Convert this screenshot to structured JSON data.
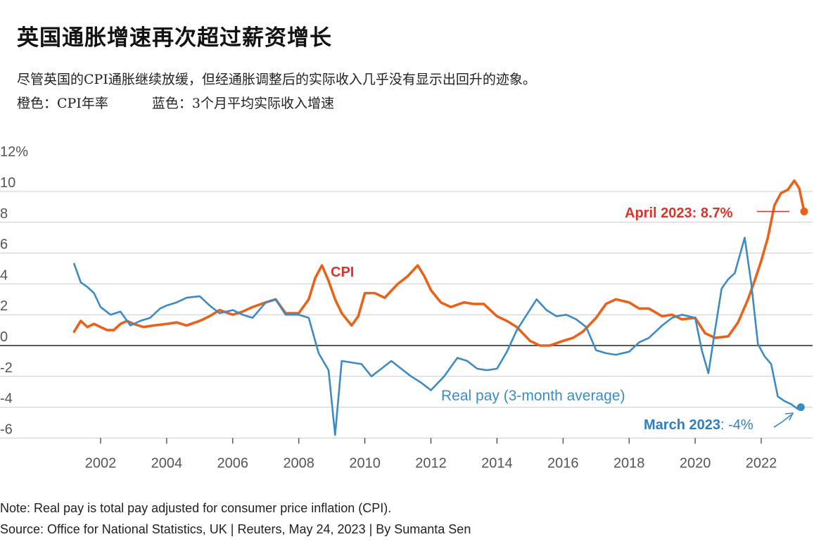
{
  "title": "英国通胀增速再次超过薪资增长",
  "subtitle": "尽管英国的CPI通胀继续放缓，但经通胀调整后的实际收入几乎没有显示出回升的迹象。",
  "legend": {
    "orange": "橙色：CPI年率",
    "blue": "蓝色：3个月平均实际收入增速"
  },
  "note": "Note: Real pay is total pay adjusted for consumer price inflation (CPI).",
  "source": "Source: Office for National Statistics, UK | Reuters, May 24, 2023 | By Sumanta Sen",
  "colors": {
    "cpi": "#e8621a",
    "pay": "#3d8bc4",
    "cpi_label": "#d9342b",
    "pay_label": "#2d7fc0",
    "grid": "#cccccc",
    "zero": "#222222"
  },
  "chart_data": {
    "type": "line",
    "title": "",
    "xlabel": "",
    "ylabel": "",
    "x_range": [
      2000,
      2023.5
    ],
    "ylim": [
      -6,
      12
    ],
    "y_ticks": [
      12,
      10,
      8,
      6,
      4,
      2,
      0,
      -2,
      -4,
      -6
    ],
    "y_tick_labels": [
      "12%",
      "10",
      "8",
      "6",
      "4",
      "2",
      "0",
      "-2",
      "-4",
      "-6"
    ],
    "x_ticks": [
      2002,
      2004,
      2006,
      2008,
      2010,
      2012,
      2014,
      2016,
      2018,
      2020,
      2022
    ],
    "x_tick_labels": [
      "2002",
      "2004",
      "2006",
      "2008",
      "2010",
      "2012",
      "2014",
      "2016",
      "2018",
      "2020",
      "2022"
    ],
    "grid": true,
    "series": [
      {
        "name": "CPI",
        "x": [
          2001.2,
          2001.4,
          2001.6,
          2001.8,
          2002.0,
          2002.2,
          2002.4,
          2002.6,
          2002.8,
          2003.0,
          2003.3,
          2003.6,
          2004.0,
          2004.3,
          2004.6,
          2005.0,
          2005.3,
          2005.6,
          2006.0,
          2006.3,
          2006.6,
          2007.0,
          2007.3,
          2007.6,
          2008.0,
          2008.3,
          2008.5,
          2008.7,
          2008.9,
          2009.1,
          2009.3,
          2009.6,
          2009.8,
          2010.0,
          2010.3,
          2010.6,
          2011.0,
          2011.3,
          2011.6,
          2011.8,
          2012.0,
          2012.3,
          2012.6,
          2013.0,
          2013.3,
          2013.6,
          2014.0,
          2014.3,
          2014.6,
          2015.0,
          2015.3,
          2015.6,
          2016.0,
          2016.3,
          2016.6,
          2017.0,
          2017.3,
          2017.6,
          2018.0,
          2018.3,
          2018.6,
          2019.0,
          2019.3,
          2019.6,
          2020.0,
          2020.3,
          2020.6,
          2021.0,
          2021.3,
          2021.6,
          2021.8,
          2022.0,
          2022.2,
          2022.4,
          2022.6,
          2022.8,
          2023.0,
          2023.15,
          2023.3
        ],
        "values": [
          0.9,
          1.6,
          1.2,
          1.4,
          1.2,
          1.0,
          1.0,
          1.4,
          1.6,
          1.4,
          1.2,
          1.3,
          1.4,
          1.5,
          1.3,
          1.6,
          1.9,
          2.3,
          2.0,
          2.2,
          2.5,
          2.8,
          3.0,
          2.1,
          2.1,
          3.0,
          4.4,
          5.2,
          4.2,
          3.0,
          2.1,
          1.3,
          1.9,
          3.4,
          3.4,
          3.1,
          4.0,
          4.5,
          5.2,
          4.5,
          3.6,
          2.8,
          2.5,
          2.8,
          2.7,
          2.7,
          1.9,
          1.6,
          1.2,
          0.3,
          0.0,
          0.0,
          0.3,
          0.5,
          0.9,
          1.8,
          2.7,
          3.0,
          2.8,
          2.4,
          2.4,
          1.9,
          2.0,
          1.7,
          1.8,
          0.8,
          0.5,
          0.6,
          1.5,
          3.0,
          4.2,
          5.5,
          7.0,
          9.1,
          9.9,
          10.1,
          10.7,
          10.2,
          8.7
        ]
      },
      {
        "name": "Real pay (3-month average)",
        "x": [
          2001.2,
          2001.4,
          2001.6,
          2001.8,
          2002.0,
          2002.3,
          2002.6,
          2002.9,
          2003.2,
          2003.5,
          2003.8,
          2004.0,
          2004.3,
          2004.6,
          2005.0,
          2005.3,
          2005.6,
          2006.0,
          2006.3,
          2006.6,
          2007.0,
          2007.3,
          2007.6,
          2008.0,
          2008.3,
          2008.6,
          2008.9,
          2009.1,
          2009.3,
          2009.6,
          2009.9,
          2010.2,
          2010.5,
          2010.8,
          2011.1,
          2011.4,
          2011.7,
          2012.0,
          2012.4,
          2012.8,
          2013.1,
          2013.4,
          2013.7,
          2014.0,
          2014.3,
          2014.6,
          2014.9,
          2015.2,
          2015.5,
          2015.8,
          2016.1,
          2016.4,
          2016.7,
          2017.0,
          2017.3,
          2017.6,
          2018.0,
          2018.3,
          2018.6,
          2019.0,
          2019.3,
          2019.6,
          2020.0,
          2020.2,
          2020.4,
          2020.6,
          2020.8,
          2021.0,
          2021.2,
          2021.5,
          2021.7,
          2021.9,
          2022.1,
          2022.3,
          2022.5,
          2022.7,
          2022.9,
          2023.1,
          2023.2
        ],
        "values": [
          5.3,
          4.1,
          3.8,
          3.4,
          2.5,
          2.0,
          2.2,
          1.3,
          1.6,
          1.8,
          2.4,
          2.6,
          2.8,
          3.1,
          3.2,
          2.6,
          2.1,
          2.3,
          2.0,
          1.8,
          2.8,
          3.0,
          2.0,
          2.0,
          1.8,
          -0.5,
          -1.6,
          -5.8,
          -1.0,
          -1.1,
          -1.2,
          -2.0,
          -1.5,
          -1.0,
          -1.5,
          -2.0,
          -2.4,
          -2.9,
          -2.0,
          -0.8,
          -1.0,
          -1.5,
          -1.6,
          -1.5,
          -0.4,
          1.0,
          2.0,
          3.0,
          2.3,
          1.9,
          2.0,
          1.7,
          1.2,
          -0.3,
          -0.5,
          -0.6,
          -0.4,
          0.2,
          0.5,
          1.3,
          1.8,
          2.0,
          1.8,
          -0.3,
          -1.8,
          1.0,
          3.7,
          4.3,
          4.7,
          7.0,
          4.0,
          0.1,
          -0.7,
          -1.2,
          -3.3,
          -3.6,
          -3.8,
          -4.1,
          -4.0
        ]
      }
    ],
    "annotations": [
      {
        "text": "CPI",
        "series": "CPI"
      },
      {
        "text": "Real pay (3-month average)",
        "series": "Real pay (3-month average)"
      },
      {
        "text_bold": "April 2023: 8.7%",
        "series": "CPI",
        "x": 2023.3,
        "y": 8.7
      },
      {
        "text_bold": "March 2023",
        "text_rest": ": -4%",
        "series": "Real pay (3-month average)",
        "x": 2023.2,
        "y": -4.0
      }
    ]
  }
}
